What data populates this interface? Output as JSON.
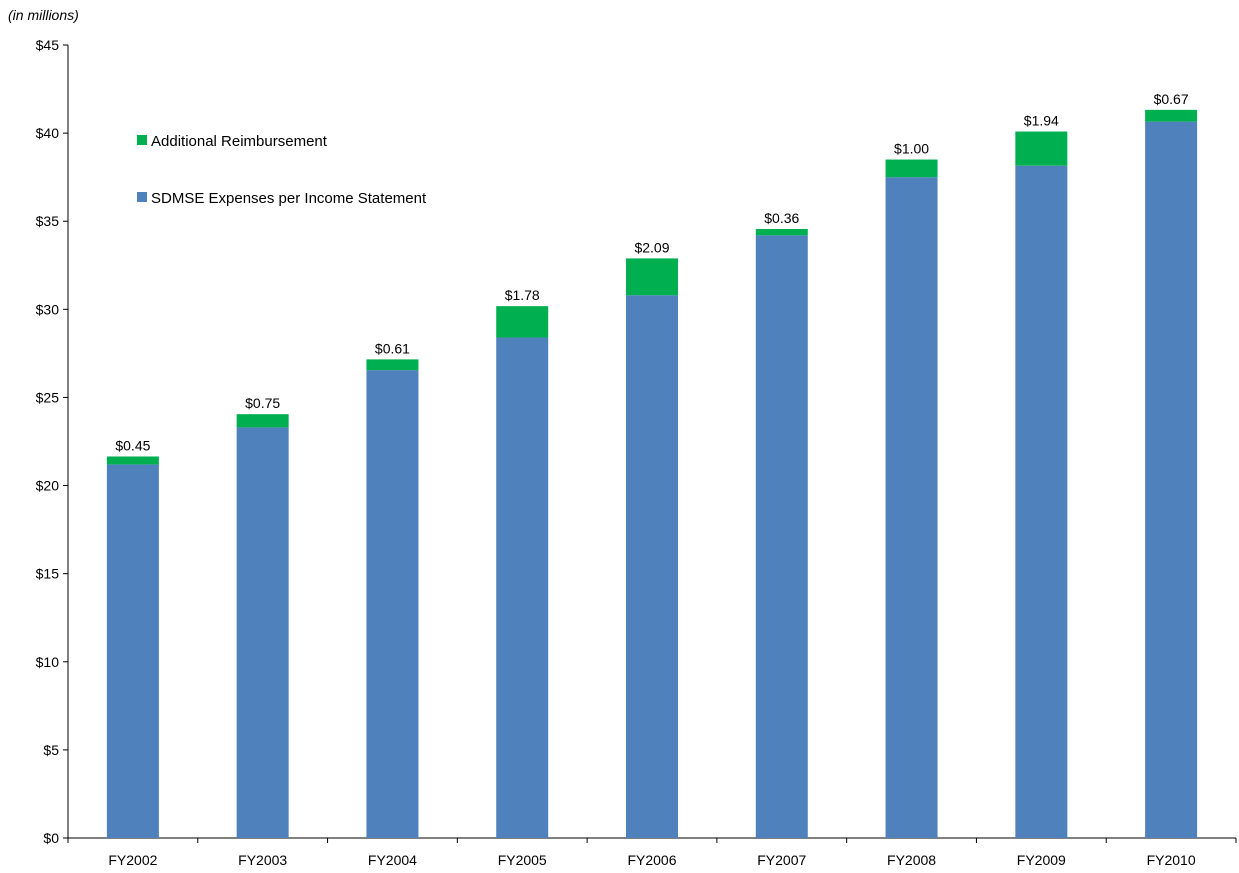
{
  "chart_data": {
    "type": "bar",
    "stacked": true,
    "unit_note": "(in millions)",
    "categories": [
      "FY2002",
      "FY2003",
      "FY2004",
      "FY2005",
      "FY2006",
      "FY2007",
      "FY2008",
      "FY2009",
      "FY2010"
    ],
    "series": [
      {
        "name": "SDMSE Expenses per Income Statement",
        "color": "#4f81bd",
        "values": [
          21.2,
          23.3,
          26.55,
          28.4,
          30.8,
          34.2,
          37.5,
          38.15,
          40.65
        ]
      },
      {
        "name": "Additional Reimbursement",
        "color": "#00b050",
        "values": [
          0.45,
          0.75,
          0.61,
          1.78,
          2.09,
          0.36,
          1.0,
          1.94,
          0.67
        ],
        "labels": [
          "$0.45",
          "$0.75",
          "$0.61",
          "$1.78",
          "$2.09",
          "$0.36",
          "$1.00",
          "$1.94",
          "$0.67"
        ]
      }
    ],
    "yticks": [
      "$0",
      "$5",
      "$10",
      "$15",
      "$20",
      "$25",
      "$30",
      "$35",
      "$40",
      "$45"
    ],
    "ylim": [
      0,
      45
    ],
    "ystep": 5,
    "legend": [
      {
        "label": "Additional Reimbursement",
        "color": "#00b050"
      },
      {
        "label": "SDMSE Expenses per Income Statement",
        "color": "#4f81bd"
      }
    ],
    "legend_position": "top-left",
    "grid": false
  }
}
